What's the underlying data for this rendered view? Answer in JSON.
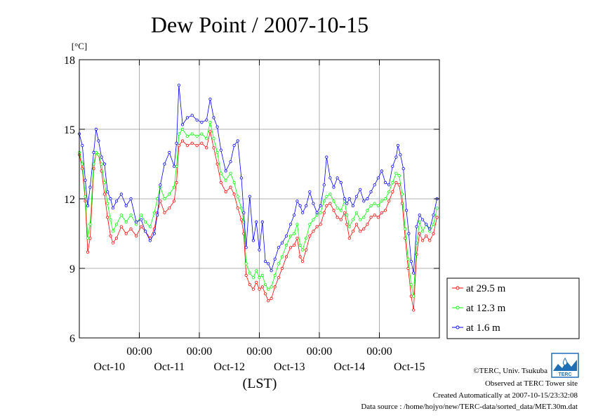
{
  "chart_data": {
    "type": "line",
    "title": "Dew Point / 2007-10-15",
    "y_unit": "[°C]",
    "xlabel": "(LST)",
    "ylim": [
      6,
      18
    ],
    "yticks": [
      "6",
      "9",
      "12",
      "15",
      "18"
    ],
    "x_range_days": [
      0,
      6
    ],
    "x_ticks": [
      {
        "day": 1,
        "time": "00:00",
        "date": "Oct-11"
      },
      {
        "day": 2,
        "time": "00:00",
        "date": "Oct-12"
      },
      {
        "day": 3,
        "time": "00:00",
        "date": "Oct-13"
      },
      {
        "day": 4,
        "time": "00:00",
        "date": "Oct-14"
      },
      {
        "day": 5,
        "time": "00:00",
        "date": "Oct-15"
      }
    ],
    "first_date_label": "Oct-10",
    "grid": true,
    "legend_position": "right",
    "series": [
      {
        "name": "at 29.5 m",
        "color": "#ff0000",
        "points": [
          [
            0.0,
            13.9
          ],
          [
            0.05,
            13.3
          ],
          [
            0.1,
            11.9
          ],
          [
            0.14,
            9.7
          ],
          [
            0.18,
            10.3
          ],
          [
            0.24,
            13.3
          ],
          [
            0.28,
            14.0
          ],
          [
            0.32,
            13.9
          ],
          [
            0.37,
            13.2
          ],
          [
            0.42,
            12.2
          ],
          [
            0.47,
            11.2
          ],
          [
            0.52,
            10.4
          ],
          [
            0.56,
            10.1
          ],
          [
            0.62,
            10.3
          ],
          [
            0.7,
            10.8
          ],
          [
            0.78,
            10.5
          ],
          [
            0.86,
            10.7
          ],
          [
            0.95,
            10.4
          ],
          [
            1.03,
            10.8
          ],
          [
            1.1,
            10.6
          ],
          [
            1.18,
            10.3
          ],
          [
            1.25,
            10.7
          ],
          [
            1.3,
            11.4
          ],
          [
            1.35,
            11.9
          ],
          [
            1.42,
            11.4
          ],
          [
            1.5,
            11.6
          ],
          [
            1.58,
            11.9
          ],
          [
            1.62,
            12.7
          ],
          [
            1.66,
            14.3
          ],
          [
            1.72,
            14.5
          ],
          [
            1.8,
            14.3
          ],
          [
            1.88,
            14.4
          ],
          [
            1.96,
            14.3
          ],
          [
            2.04,
            14.4
          ],
          [
            2.12,
            14.2
          ],
          [
            2.18,
            14.9
          ],
          [
            2.24,
            14.2
          ],
          [
            2.3,
            13.5
          ],
          [
            2.36,
            12.7
          ],
          [
            2.44,
            12.3
          ],
          [
            2.52,
            12.5
          ],
          [
            2.58,
            12.2
          ],
          [
            2.64,
            11.6
          ],
          [
            2.7,
            11.1
          ],
          [
            2.74,
            10.5
          ],
          [
            2.78,
            8.7
          ],
          [
            2.84,
            8.3
          ],
          [
            2.9,
            8.1
          ],
          [
            2.95,
            8.4
          ],
          [
            3.0,
            8.1
          ],
          [
            3.05,
            8.2
          ],
          [
            3.1,
            7.9
          ],
          [
            3.15,
            7.6
          ],
          [
            3.2,
            7.7
          ],
          [
            3.26,
            8.2
          ],
          [
            3.32,
            8.6
          ],
          [
            3.38,
            9.0
          ],
          [
            3.45,
            9.5
          ],
          [
            3.52,
            9.9
          ],
          [
            3.58,
            10.0
          ],
          [
            3.63,
            10.3
          ],
          [
            3.68,
            9.5
          ],
          [
            3.72,
            9.3
          ],
          [
            3.78,
            9.8
          ],
          [
            3.84,
            10.4
          ],
          [
            3.9,
            10.6
          ],
          [
            3.96,
            10.8
          ],
          [
            4.02,
            10.9
          ],
          [
            4.08,
            11.4
          ],
          [
            4.12,
            11.7
          ],
          [
            4.18,
            11.8
          ],
          [
            4.24,
            11.5
          ],
          [
            4.3,
            11.2
          ],
          [
            4.36,
            11.1
          ],
          [
            4.42,
            11.4
          ],
          [
            4.46,
            10.9
          ],
          [
            4.5,
            10.3
          ],
          [
            4.56,
            10.6
          ],
          [
            4.62,
            10.9
          ],
          [
            4.68,
            10.6
          ],
          [
            4.74,
            10.7
          ],
          [
            4.8,
            10.9
          ],
          [
            4.86,
            11.2
          ],
          [
            4.92,
            11.3
          ],
          [
            4.98,
            11.2
          ],
          [
            5.04,
            11.4
          ],
          [
            5.1,
            11.5
          ],
          [
            5.16,
            11.9
          ],
          [
            5.22,
            12.3
          ],
          [
            5.28,
            12.7
          ],
          [
            5.33,
            12.6
          ],
          [
            5.38,
            11.8
          ],
          [
            5.43,
            10.3
          ],
          [
            5.48,
            9.0
          ],
          [
            5.53,
            7.8
          ],
          [
            5.57,
            7.2
          ],
          [
            5.62,
            9.6
          ],
          [
            5.67,
            10.5
          ],
          [
            5.72,
            10.2
          ],
          [
            5.78,
            10.4
          ],
          [
            5.84,
            10.2
          ],
          [
            5.9,
            10.5
          ],
          [
            5.96,
            11.2
          ]
        ]
      },
      {
        "name": "at 12.3 m",
        "color": "#00ff00",
        "points": [
          [
            0.0,
            14.0
          ],
          [
            0.05,
            13.5
          ],
          [
            0.1,
            12.1
          ],
          [
            0.14,
            10.3
          ],
          [
            0.18,
            10.9
          ],
          [
            0.24,
            13.5
          ],
          [
            0.28,
            14.0
          ],
          [
            0.32,
            13.9
          ],
          [
            0.37,
            13.5
          ],
          [
            0.42,
            12.7
          ],
          [
            0.47,
            11.8
          ],
          [
            0.52,
            11.1
          ],
          [
            0.56,
            10.6
          ],
          [
            0.62,
            10.9
          ],
          [
            0.7,
            11.3
          ],
          [
            0.78,
            11.0
          ],
          [
            0.86,
            11.3
          ],
          [
            0.95,
            10.9
          ],
          [
            1.03,
            11.3
          ],
          [
            1.1,
            11.0
          ],
          [
            1.18,
            10.8
          ],
          [
            1.25,
            11.4
          ],
          [
            1.3,
            12.0
          ],
          [
            1.35,
            12.5
          ],
          [
            1.42,
            12.0
          ],
          [
            1.5,
            12.2
          ],
          [
            1.58,
            12.5
          ],
          [
            1.62,
            13.4
          ],
          [
            1.66,
            14.8
          ],
          [
            1.72,
            15.0
          ],
          [
            1.8,
            14.7
          ],
          [
            1.88,
            14.8
          ],
          [
            1.96,
            14.7
          ],
          [
            2.04,
            14.8
          ],
          [
            2.12,
            14.6
          ],
          [
            2.18,
            15.3
          ],
          [
            2.24,
            14.6
          ],
          [
            2.3,
            14.0
          ],
          [
            2.36,
            13.1
          ],
          [
            2.44,
            12.8
          ],
          [
            2.52,
            13.1
          ],
          [
            2.58,
            12.7
          ],
          [
            2.64,
            12.1
          ],
          [
            2.7,
            11.6
          ],
          [
            2.74,
            11.0
          ],
          [
            2.78,
            9.2
          ],
          [
            2.84,
            8.8
          ],
          [
            2.9,
            8.6
          ],
          [
            2.95,
            8.9
          ],
          [
            3.0,
            8.6
          ],
          [
            3.05,
            8.7
          ],
          [
            3.1,
            8.3
          ],
          [
            3.15,
            8.1
          ],
          [
            3.2,
            8.2
          ],
          [
            3.26,
            8.7
          ],
          [
            3.32,
            9.2
          ],
          [
            3.38,
            9.5
          ],
          [
            3.45,
            10.0
          ],
          [
            3.52,
            10.4
          ],
          [
            3.58,
            10.5
          ],
          [
            3.63,
            10.9
          ],
          [
            3.68,
            10.0
          ],
          [
            3.72,
            9.8
          ],
          [
            3.78,
            10.3
          ],
          [
            3.84,
            10.9
          ],
          [
            3.9,
            11.1
          ],
          [
            3.96,
            11.3
          ],
          [
            4.02,
            11.4
          ],
          [
            4.08,
            11.9
          ],
          [
            4.12,
            12.1
          ],
          [
            4.18,
            12.2
          ],
          [
            4.24,
            11.9
          ],
          [
            4.3,
            11.6
          ],
          [
            4.36,
            11.5
          ],
          [
            4.42,
            11.9
          ],
          [
            4.46,
            11.3
          ],
          [
            4.5,
            10.8
          ],
          [
            4.56,
            11.1
          ],
          [
            4.62,
            11.4
          ],
          [
            4.68,
            11.1
          ],
          [
            4.74,
            11.2
          ],
          [
            4.8,
            11.5
          ],
          [
            4.86,
            11.7
          ],
          [
            4.92,
            11.8
          ],
          [
            4.98,
            11.7
          ],
          [
            5.04,
            11.9
          ],
          [
            5.1,
            12.0
          ],
          [
            5.16,
            12.3
          ],
          [
            5.22,
            12.7
          ],
          [
            5.28,
            13.1
          ],
          [
            5.33,
            13.0
          ],
          [
            5.38,
            12.2
          ],
          [
            5.43,
            10.7
          ],
          [
            5.48,
            9.4
          ],
          [
            5.53,
            8.3
          ],
          [
            5.57,
            7.8
          ],
          [
            5.62,
            10.1
          ],
          [
            5.67,
            11.0
          ],
          [
            5.72,
            10.6
          ],
          [
            5.78,
            10.9
          ],
          [
            5.84,
            10.6
          ],
          [
            5.9,
            10.9
          ],
          [
            5.96,
            11.6
          ]
        ]
      },
      {
        "name": "at 1.6 m",
        "color": "#0000ff",
        "points": [
          [
            0.0,
            14.8
          ],
          [
            0.05,
            14.3
          ],
          [
            0.1,
            12.8
          ],
          [
            0.14,
            11.7
          ],
          [
            0.18,
            12.5
          ],
          [
            0.24,
            14.0
          ],
          [
            0.28,
            15.0
          ],
          [
            0.32,
            14.5
          ],
          [
            0.37,
            13.8
          ],
          [
            0.42,
            13.5
          ],
          [
            0.47,
            12.3
          ],
          [
            0.52,
            12.0
          ],
          [
            0.56,
            11.6
          ],
          [
            0.62,
            11.9
          ],
          [
            0.7,
            12.2
          ],
          [
            0.78,
            11.7
          ],
          [
            0.86,
            12.0
          ],
          [
            0.95,
            11.0
          ],
          [
            1.03,
            11.1
          ],
          [
            1.1,
            10.6
          ],
          [
            1.18,
            10.2
          ],
          [
            1.25,
            10.5
          ],
          [
            1.3,
            11.3
          ],
          [
            1.35,
            12.6
          ],
          [
            1.42,
            13.5
          ],
          [
            1.5,
            14.0
          ],
          [
            1.58,
            13.4
          ],
          [
            1.62,
            14.4
          ],
          [
            1.66,
            16.9
          ],
          [
            1.72,
            15.2
          ],
          [
            1.8,
            15.5
          ],
          [
            1.88,
            15.6
          ],
          [
            1.96,
            15.4
          ],
          [
            2.04,
            15.3
          ],
          [
            2.12,
            15.4
          ],
          [
            2.18,
            16.3
          ],
          [
            2.24,
            15.5
          ],
          [
            2.3,
            15.1
          ],
          [
            2.36,
            14.1
          ],
          [
            2.44,
            13.2
          ],
          [
            2.52,
            13.6
          ],
          [
            2.58,
            14.3
          ],
          [
            2.64,
            14.5
          ],
          [
            2.7,
            12.9
          ],
          [
            2.74,
            11.4
          ],
          [
            2.78,
            9.9
          ],
          [
            2.84,
            12.1
          ],
          [
            2.9,
            10.2
          ],
          [
            2.95,
            11.0
          ],
          [
            3.0,
            9.8
          ],
          [
            3.05,
            11.0
          ],
          [
            3.1,
            9.3
          ],
          [
            3.15,
            9.2
          ],
          [
            3.2,
            8.9
          ],
          [
            3.26,
            9.4
          ],
          [
            3.32,
            9.9
          ],
          [
            3.38,
            10.1
          ],
          [
            3.45,
            10.4
          ],
          [
            3.52,
            10.9
          ],
          [
            3.58,
            11.3
          ],
          [
            3.63,
            11.9
          ],
          [
            3.68,
            11.7
          ],
          [
            3.72,
            11.4
          ],
          [
            3.78,
            11.7
          ],
          [
            3.84,
            12.3
          ],
          [
            3.9,
            11.8
          ],
          [
            3.96,
            11.4
          ],
          [
            4.02,
            11.7
          ],
          [
            4.08,
            12.6
          ],
          [
            4.12,
            13.8
          ],
          [
            4.18,
            12.9
          ],
          [
            4.24,
            12.5
          ],
          [
            4.3,
            12.9
          ],
          [
            4.36,
            12.7
          ],
          [
            4.42,
            12.0
          ],
          [
            4.46,
            11.8
          ],
          [
            4.5,
            12.0
          ],
          [
            4.56,
            11.7
          ],
          [
            4.62,
            12.1
          ],
          [
            4.68,
            12.4
          ],
          [
            4.74,
            11.9
          ],
          [
            4.8,
            12.0
          ],
          [
            4.86,
            12.3
          ],
          [
            4.92,
            12.6
          ],
          [
            4.98,
            12.9
          ],
          [
            5.04,
            13.2
          ],
          [
            5.1,
            12.7
          ],
          [
            5.16,
            12.6
          ],
          [
            5.22,
            13.4
          ],
          [
            5.28,
            13.8
          ],
          [
            5.31,
            14.3
          ],
          [
            5.35,
            13.9
          ],
          [
            5.4,
            13.3
          ],
          [
            5.45,
            11.5
          ],
          [
            5.49,
            10.5
          ],
          [
            5.53,
            9.3
          ],
          [
            5.57,
            8.8
          ],
          [
            5.62,
            10.8
          ],
          [
            5.67,
            11.3
          ],
          [
            5.72,
            11.1
          ],
          [
            5.78,
            10.9
          ],
          [
            5.84,
            10.7
          ],
          [
            5.9,
            11.3
          ],
          [
            5.96,
            12.0
          ]
        ]
      }
    ]
  },
  "footer": {
    "copyright": "©TERC, Univ. Tsukuba",
    "observed": "Observed at TERC Tower site",
    "created": "Created Automatically at 2007-10-15/23:32:08",
    "source": "Data source : /home/hojyo/new/TERC-data/sorted_data/MET.30m.dat",
    "logo_text": "TERC"
  }
}
